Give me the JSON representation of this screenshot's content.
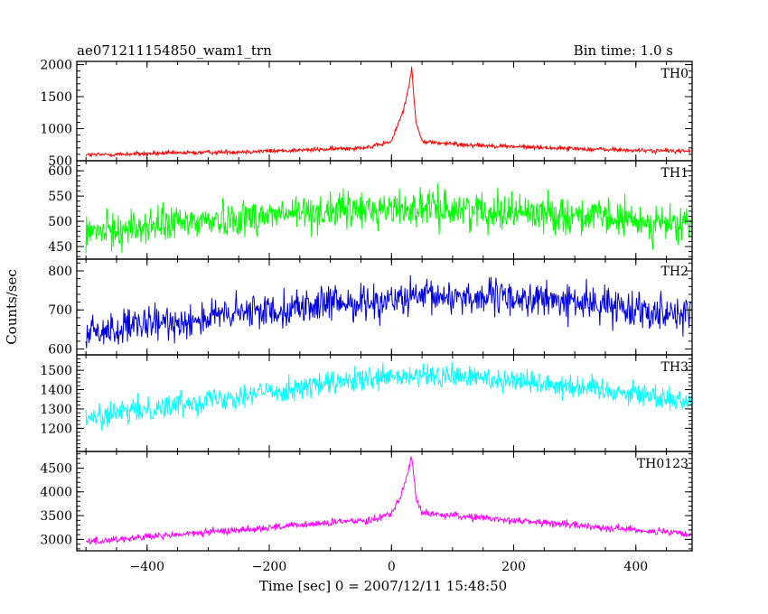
{
  "header": {
    "title": "ae071211154850_wam1_trn",
    "bin_time": "Bin time: 1.0 s"
  },
  "axes": {
    "xlabel": "Time [sec] 0 = 2007/12/11 15:48:50",
    "ylabel": "Counts/sec"
  },
  "chart_data": {
    "type": "line",
    "title": "ae071211154850_wam1_trn",
    "bin_time_s": 1.0,
    "xlabel": "Time [sec] 0 = 2007/12/11 15:48:50",
    "ylabel": "Counts/sec",
    "xlim": [
      -515,
      492
    ],
    "x_ticks": [
      -400,
      -200,
      0,
      200,
      400
    ],
    "x_tick_labels": [
      "−400",
      "−200",
      "0",
      "200",
      "400"
    ],
    "grid": false,
    "panels": [
      {
        "name": "TH0",
        "color": "#ff0000",
        "ylim": [
          500,
          2050
        ],
        "y_ticks": [
          500,
          1000,
          1500,
          2000
        ],
        "y_tick_labels": [
          "500",
          "1000",
          "1500",
          "2000"
        ],
        "profile": [
          [
            -500,
            590
          ],
          [
            -400,
            610
          ],
          [
            -300,
            630
          ],
          [
            -200,
            650
          ],
          [
            -100,
            680
          ],
          [
            -30,
            720
          ],
          [
            0,
            800
          ],
          [
            10,
            1050
          ],
          [
            20,
            1300
          ],
          [
            28,
            1650
          ],
          [
            33,
            1950
          ],
          [
            40,
            1100
          ],
          [
            50,
            800
          ],
          [
            100,
            760
          ],
          [
            200,
            720
          ],
          [
            300,
            690
          ],
          [
            400,
            660
          ],
          [
            490,
            650
          ]
        ],
        "noise": 25
      },
      {
        "name": "TH1",
        "color": "#00ff00",
        "ylim": [
          425,
          620
        ],
        "y_ticks": [
          450,
          500,
          550,
          600
        ],
        "y_tick_labels": [
          "450",
          "500",
          "550",
          "600"
        ],
        "profile": [
          [
            -500,
            475
          ],
          [
            -400,
            490
          ],
          [
            -300,
            502
          ],
          [
            -200,
            512
          ],
          [
            -100,
            520
          ],
          [
            0,
            525
          ],
          [
            100,
            525
          ],
          [
            200,
            520
          ],
          [
            300,
            512
          ],
          [
            400,
            500
          ],
          [
            490,
            490
          ]
        ],
        "noise": 26
      },
      {
        "name": "TH2",
        "color": "#0000dd",
        "ylim": [
          585,
          830
        ],
        "y_ticks": [
          600,
          700,
          800
        ],
        "y_tick_labels": [
          "600",
          "700",
          "800"
        ],
        "profile": [
          [
            -500,
            640
          ],
          [
            -400,
            660
          ],
          [
            -300,
            680
          ],
          [
            -200,
            700
          ],
          [
            -100,
            715
          ],
          [
            0,
            725
          ],
          [
            100,
            735
          ],
          [
            200,
            730
          ],
          [
            300,
            720
          ],
          [
            400,
            705
          ],
          [
            490,
            690
          ]
        ],
        "noise": 32
      },
      {
        "name": "TH3",
        "color": "#00ffff",
        "ylim": [
          1080,
          1580
        ],
        "y_ticks": [
          1200,
          1300,
          1400,
          1500
        ],
        "y_tick_labels": [
          "1200",
          "1300",
          "1400",
          "1500"
        ],
        "profile": [
          [
            -500,
            1250
          ],
          [
            -400,
            1300
          ],
          [
            -300,
            1350
          ],
          [
            -200,
            1390
          ],
          [
            -100,
            1430
          ],
          [
            0,
            1460
          ],
          [
            100,
            1470
          ],
          [
            200,
            1450
          ],
          [
            300,
            1420
          ],
          [
            400,
            1380
          ],
          [
            490,
            1340
          ]
        ],
        "noise": 45
      },
      {
        "name": "TH0123",
        "color": "#ff00ff",
        "ylim": [
          2760,
          4850
        ],
        "y_ticks": [
          3000,
          3500,
          4000,
          4500
        ],
        "y_tick_labels": [
          "3000",
          "3500",
          "4000",
          "4500"
        ],
        "profile": [
          [
            -500,
            2950
          ],
          [
            -400,
            3050
          ],
          [
            -300,
            3150
          ],
          [
            -200,
            3250
          ],
          [
            -100,
            3350
          ],
          [
            -30,
            3420
          ],
          [
            0,
            3550
          ],
          [
            10,
            3800
          ],
          [
            20,
            4100
          ],
          [
            28,
            4450
          ],
          [
            33,
            4750
          ],
          [
            40,
            3900
          ],
          [
            50,
            3550
          ],
          [
            100,
            3500
          ],
          [
            200,
            3400
          ],
          [
            300,
            3300
          ],
          [
            400,
            3200
          ],
          [
            490,
            3100
          ]
        ],
        "noise": 55
      }
    ]
  }
}
